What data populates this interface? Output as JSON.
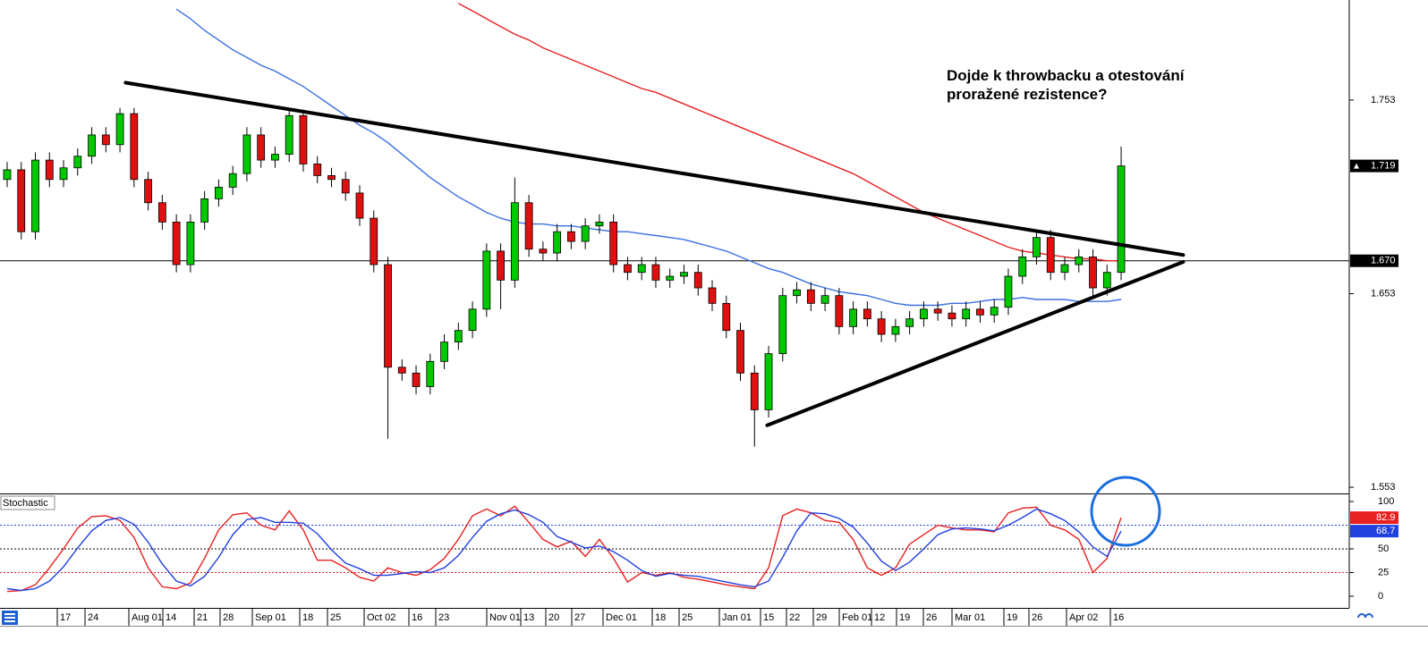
{
  "chart_data": [
    {
      "type": "candlestick",
      "annotation": [
        "Dojde k throwbacku a otestování",
        "proražené rezistence?"
      ],
      "ylim": [
        1.5498,
        1.8047
      ],
      "yticks": [
        1.553,
        1.653,
        1.753
      ],
      "date_labels": [
        "17",
        "24",
        "Aug 01",
        "14",
        "21",
        "28",
        "Sep 01",
        "18",
        "25",
        "Oct 02",
        "16",
        "23",
        "Nov 01",
        "13",
        "20",
        "27",
        "Dec 01",
        "18",
        "25",
        "Jan 01",
        "15",
        "22",
        "29",
        "Feb 01",
        "12",
        "19",
        "26",
        "Mar 01",
        "19",
        "26",
        "Apr 02",
        "16"
      ],
      "up_color": "#00c800",
      "down_color": "#e01010",
      "open": [
        1.712,
        1.717,
        1.685,
        1.722,
        1.712,
        1.718,
        1.724,
        1.735,
        1.73,
        1.746,
        1.712,
        1.7,
        1.69,
        1.668,
        1.69,
        1.702,
        1.708,
        1.715,
        1.735,
        1.722,
        1.725,
        1.745,
        1.72,
        1.714,
        1.712,
        1.705,
        1.692,
        1.668,
        1.615,
        1.612,
        1.605,
        1.618,
        1.628,
        1.634,
        1.645,
        1.675,
        1.66,
        1.7,
        1.676,
        1.674,
        1.685,
        1.68,
        1.688,
        1.69,
        1.668,
        1.664,
        1.668,
        1.66,
        1.662,
        1.664,
        1.656,
        1.648,
        1.634,
        1.612,
        1.593,
        1.622,
        1.652,
        1.655,
        1.648,
        1.652,
        1.636,
        1.645,
        1.64,
        1.632,
        1.636,
        1.64,
        1.645,
        1.643,
        1.64,
        1.645,
        1.642,
        1.646,
        1.662,
        1.672,
        1.682,
        1.664,
        1.668,
        1.672,
        1.656,
        1.664
      ],
      "high": [
        1.721,
        1.721,
        1.726,
        1.726,
        1.722,
        1.728,
        1.739,
        1.739,
        1.749,
        1.749,
        1.716,
        1.704,
        1.694,
        1.694,
        1.706,
        1.712,
        1.719,
        1.739,
        1.739,
        1.729,
        1.749,
        1.748,
        1.724,
        1.718,
        1.716,
        1.709,
        1.696,
        1.672,
        1.619,
        1.616,
        1.622,
        1.632,
        1.638,
        1.649,
        1.679,
        1.679,
        1.713,
        1.704,
        1.68,
        1.689,
        1.689,
        1.692,
        1.694,
        1.694,
        1.672,
        1.672,
        1.672,
        1.666,
        1.668,
        1.668,
        1.66,
        1.652,
        1.638,
        1.616,
        1.626,
        1.656,
        1.659,
        1.659,
        1.656,
        1.656,
        1.649,
        1.649,
        1.644,
        1.64,
        1.644,
        1.649,
        1.649,
        1.647,
        1.649,
        1.649,
        1.65,
        1.666,
        1.676,
        1.686,
        1.686,
        1.672,
        1.676,
        1.676,
        1.668,
        1.729
      ],
      "low": [
        1.708,
        1.681,
        1.681,
        1.708,
        1.708,
        1.714,
        1.72,
        1.726,
        1.726,
        1.708,
        1.696,
        1.686,
        1.664,
        1.664,
        1.686,
        1.698,
        1.704,
        1.711,
        1.718,
        1.718,
        1.721,
        1.716,
        1.71,
        1.708,
        1.701,
        1.688,
        1.664,
        1.578,
        1.608,
        1.601,
        1.601,
        1.614,
        1.624,
        1.63,
        1.641,
        1.645,
        1.656,
        1.672,
        1.67,
        1.67,
        1.676,
        1.676,
        1.684,
        1.664,
        1.66,
        1.66,
        1.656,
        1.656,
        1.658,
        1.652,
        1.644,
        1.63,
        1.608,
        1.574,
        1.589,
        1.618,
        1.648,
        1.644,
        1.644,
        1.632,
        1.632,
        1.636,
        1.628,
        1.628,
        1.632,
        1.636,
        1.639,
        1.636,
        1.636,
        1.638,
        1.638,
        1.642,
        1.658,
        1.668,
        1.66,
        1.66,
        1.664,
        1.652,
        1.652,
        1.66
      ],
      "close": [
        1.717,
        1.685,
        1.722,
        1.712,
        1.718,
        1.724,
        1.735,
        1.73,
        1.746,
        1.712,
        1.7,
        1.69,
        1.668,
        1.69,
        1.702,
        1.708,
        1.715,
        1.735,
        1.722,
        1.725,
        1.745,
        1.72,
        1.714,
        1.712,
        1.705,
        1.692,
        1.668,
        1.615,
        1.612,
        1.605,
        1.618,
        1.628,
        1.634,
        1.645,
        1.675,
        1.66,
        1.7,
        1.676,
        1.674,
        1.685,
        1.68,
        1.688,
        1.69,
        1.668,
        1.664,
        1.668,
        1.66,
        1.662,
        1.664,
        1.656,
        1.648,
        1.634,
        1.612,
        1.593,
        1.622,
        1.652,
        1.655,
        1.648,
        1.652,
        1.636,
        1.645,
        1.64,
        1.632,
        1.636,
        1.64,
        1.645,
        1.643,
        1.64,
        1.645,
        1.642,
        1.646,
        1.662,
        1.672,
        1.682,
        1.664,
        1.668,
        1.672,
        1.656,
        1.664,
        1.719
      ],
      "series": [
        {
          "color": "#3a6fe0",
          "values": [
            null,
            null,
            null,
            null,
            null,
            null,
            null,
            null,
            null,
            null,
            null,
            null,
            1.8,
            1.795,
            1.789,
            1.784,
            1.779,
            1.775,
            1.771,
            1.768,
            1.764,
            1.76,
            1.755,
            1.75,
            1.745,
            1.74,
            1.736,
            1.731,
            1.725,
            1.719,
            1.713,
            1.708,
            1.703,
            1.699,
            1.695,
            1.692,
            1.69,
            1.689,
            1.689,
            1.688,
            1.688,
            1.687,
            1.686,
            1.685,
            1.685,
            1.684,
            1.683,
            1.682,
            1.681,
            1.679,
            1.677,
            1.675,
            1.672,
            1.669,
            1.666,
            1.664,
            1.661,
            1.658,
            1.656,
            1.654,
            1.653,
            1.652,
            1.65,
            1.648,
            1.647,
            1.647,
            1.647,
            1.648,
            1.648,
            1.649,
            1.65,
            1.65,
            1.651,
            1.65,
            1.65,
            1.65,
            1.649,
            1.649,
            1.649,
            1.65
          ]
        },
        {
          "color": "#e82020",
          "values": [
            null,
            null,
            null,
            null,
            null,
            null,
            null,
            null,
            null,
            null,
            null,
            null,
            null,
            null,
            null,
            null,
            null,
            null,
            null,
            null,
            null,
            null,
            null,
            null,
            null,
            null,
            null,
            null,
            null,
            null,
            null,
            null,
            1.803,
            1.799,
            1.795,
            1.791,
            1.787,
            1.784,
            1.78,
            1.777,
            1.774,
            1.771,
            1.768,
            1.765,
            1.762,
            1.759,
            1.757,
            1.754,
            1.751,
            1.748,
            1.745,
            1.742,
            1.739,
            1.736,
            1.733,
            1.73,
            1.727,
            1.724,
            1.721,
            1.718,
            1.715,
            1.711,
            1.707,
            1.703,
            1.699,
            1.695,
            1.692,
            1.689,
            1.686,
            1.683,
            1.68,
            1.677,
            1.675,
            1.674,
            1.673,
            1.672,
            1.671,
            1.671,
            1.67,
            1.67
          ]
        }
      ],
      "trendlines": [
        {
          "x": [
            8.4,
            83.4
          ],
          "y": [
            1.762,
            1.673
          ]
        },
        {
          "x": [
            53.9,
            83.4
          ],
          "y": [
            1.585,
            1.6694
          ]
        }
      ],
      "hline": {
        "value": 1.67,
        "label": "1.670"
      }
    },
    {
      "type": "line",
      "title": "Stochastic",
      "ylim": [
        -12.3,
        107.5
      ],
      "yticks": [
        0,
        25,
        50,
        100
      ],
      "levels": [
        {
          "value": 75,
          "color": "#2040e0"
        },
        {
          "value": 50,
          "color": "#000000"
        },
        {
          "value": 25,
          "color": "#e02020"
        }
      ],
      "series": [
        {
          "color": "#e82020",
          "values": [
            5,
            6,
            12,
            30,
            50,
            72,
            84,
            85,
            80,
            62,
            30,
            10,
            8,
            14,
            40,
            70,
            86,
            88,
            75,
            70,
            90,
            70,
            38,
            38,
            30,
            20,
            16,
            30,
            25,
            22,
            28,
            40,
            60,
            85,
            92,
            85,
            95,
            78,
            60,
            52,
            58,
            42,
            60,
            40,
            15,
            25,
            22,
            25,
            20,
            18,
            15,
            12,
            10,
            8,
            30,
            85,
            92,
            88,
            80,
            78,
            60,
            30,
            22,
            30,
            55,
            65,
            75,
            72,
            70,
            70,
            68,
            88,
            93,
            94,
            75,
            70,
            60,
            25,
            40,
            82.9
          ]
        },
        {
          "color": "#2040e0",
          "values": [
            8,
            6,
            8,
            16,
            31,
            51,
            69,
            80,
            83,
            76,
            57,
            34,
            16,
            11,
            21,
            41,
            65,
            81,
            83,
            78,
            78,
            77,
            66,
            49,
            35,
            29,
            22,
            22,
            24,
            26,
            25,
            30,
            43,
            62,
            79,
            87,
            91,
            86,
            78,
            63,
            57,
            51,
            53,
            47,
            38,
            27,
            21,
            24,
            22,
            21,
            18,
            15,
            12,
            10,
            16,
            41,
            69,
            88,
            87,
            82,
            73,
            56,
            37,
            27,
            36,
            50,
            65,
            71,
            72,
            71,
            69,
            75,
            83,
            92,
            87,
            80,
            68,
            52,
            42,
            68.7
          ]
        }
      ]
    }
  ]
}
